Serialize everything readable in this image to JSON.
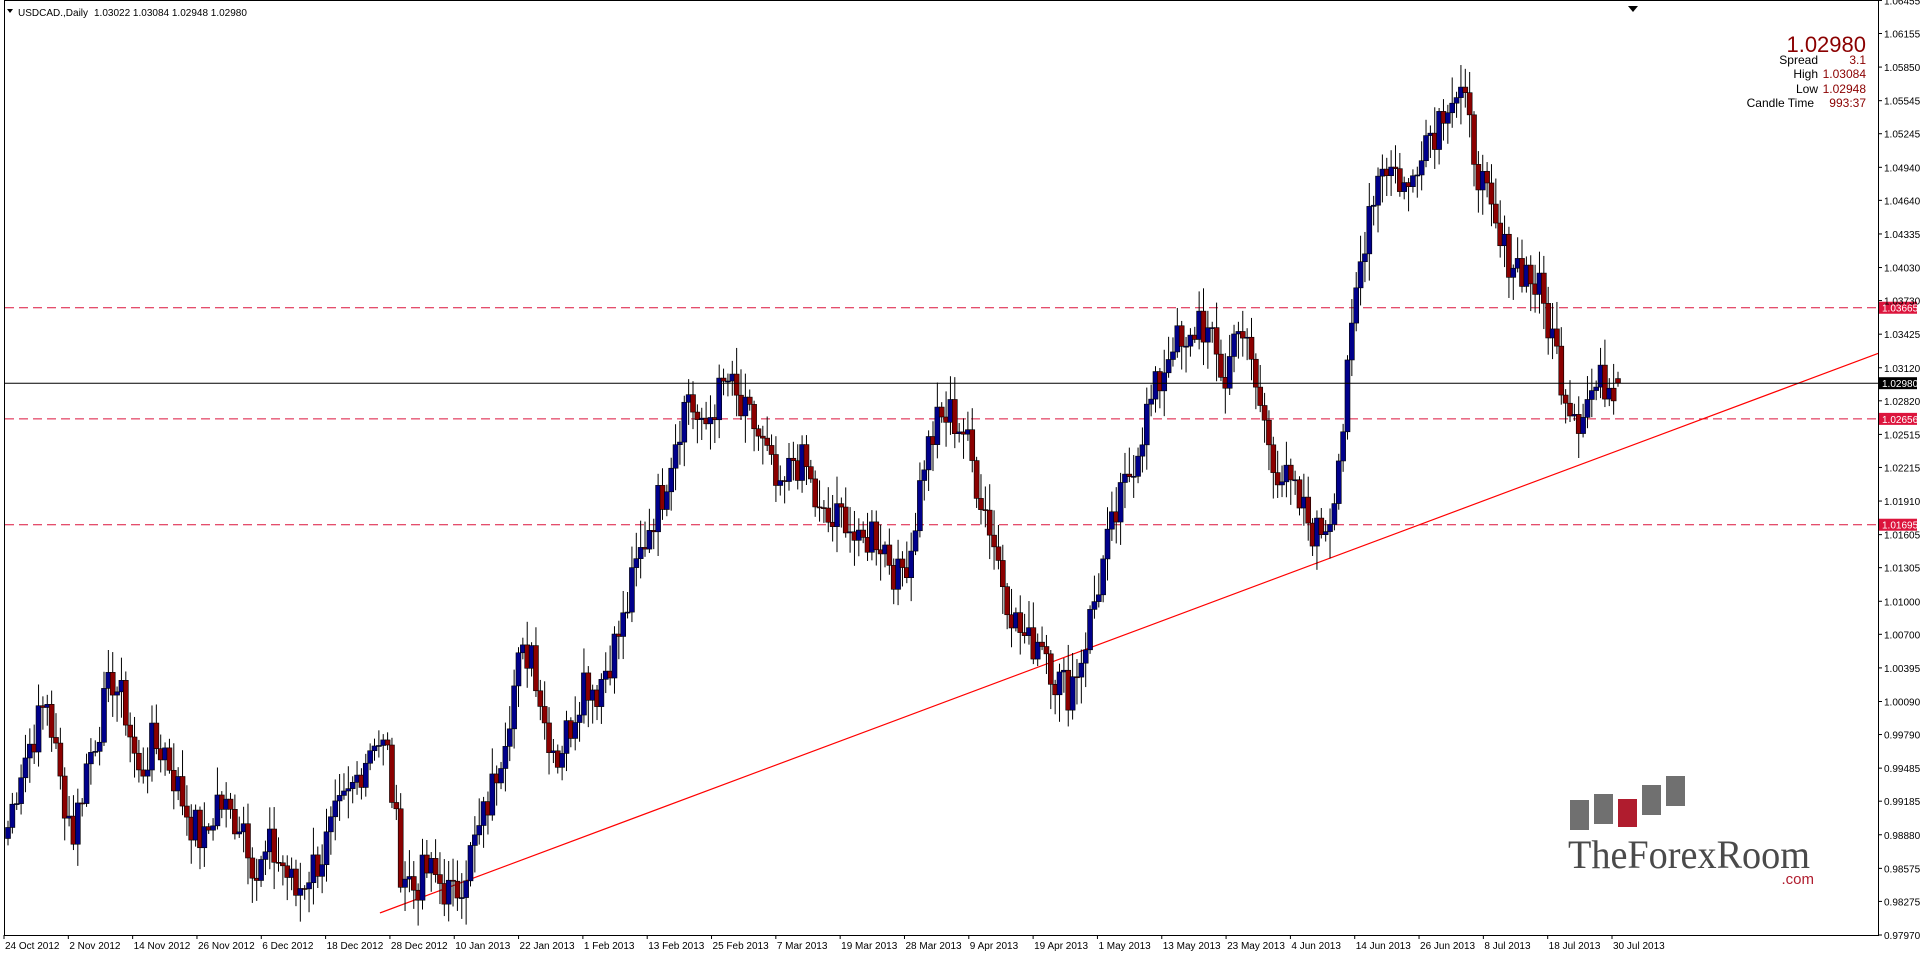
{
  "header": {
    "symbol": "USDCAD.,Daily",
    "ohlc": "1.03022 1.03084 1.02948 1.02980"
  },
  "info_panel": {
    "bid": "1.02980",
    "spread_label": "Spread",
    "spread_value": "3.1",
    "high_label": "High",
    "high_value": "1.03084",
    "low_label": "Low",
    "low_value": "1.02948",
    "candle_time_label": "Candle Time",
    "candle_time_value": "993:37"
  },
  "logo": {
    "name": "TheForexRoom",
    "domain": ".com"
  },
  "colors": {
    "bull": "#00008b",
    "bear": "#8b0000",
    "level_line": "#dc143c",
    "trend_line": "#ff0000",
    "price_line": "#000000"
  },
  "chart_data": {
    "type": "candlestick",
    "ylim": [
      0.9797,
      1.0645
    ],
    "y_ticks": [
      "1.06455",
      "1.06155",
      "1.05850",
      "1.05545",
      "1.05245",
      "1.04940",
      "1.04640",
      "1.04335",
      "1.04030",
      "1.03730",
      "1.03425",
      "1.03120",
      "1.02820",
      "1.02515",
      "1.02215",
      "1.01910",
      "1.01605",
      "1.01305",
      "1.01000",
      "1.00700",
      "1.00395",
      "1.00090",
      "0.99790",
      "0.99485",
      "0.99185",
      "0.98880",
      "0.98575",
      "0.98275",
      "0.97970"
    ],
    "x_ticks": [
      "24 Oct 2012",
      "2 Nov 2012",
      "14 Nov 2012",
      "26 Nov 2012",
      "6 Dec 2012",
      "18 Dec 2012",
      "28 Dec 2012",
      "10 Jan 2013",
      "22 Jan 2013",
      "1 Feb 2013",
      "13 Feb 2013",
      "25 Feb 2013",
      "7 Mar 2013",
      "19 Mar 2013",
      "28 Mar 2013",
      "9 Apr 2013",
      "19 Apr 2013",
      "1 May 2013",
      "13 May 2013",
      "23 May 2013",
      "4 Jun 2013",
      "14 Jun 2013",
      "26 Jun 2013",
      "8 Jul 2013",
      "18 Jul 2013",
      "30 Jul 2013"
    ],
    "current_price": "1.02980",
    "levels": [
      {
        "price": 1.03665,
        "label": "1.03665"
      },
      {
        "price": 1.02656,
        "label": "1.02656"
      },
      {
        "price": 1.01695,
        "label": "1.01695"
      }
    ],
    "trendline": {
      "start": [
        0,
        0.9817
      ],
      "end": [
        1,
        1.0325
      ]
    },
    "anchors": [
      0.9895,
      0.995,
      0.998,
      1.001,
      0.9935,
      0.989,
      0.995,
      0.999,
      1.003,
      1.0,
      0.994,
      0.997,
      0.9965,
      0.993,
      0.99,
      0.988,
      0.992,
      0.9905,
      0.99,
      0.985,
      0.9875,
      0.986,
      0.9835,
      0.9855,
      0.987,
      0.99,
      0.992,
      0.995,
      0.998,
      0.996,
      0.986,
      0.984,
      0.9855,
      0.9845,
      0.983,
      0.986,
      0.989,
      0.993,
      0.9985,
      1.004,
      1.006,
      0.999,
      0.996,
      0.999,
      1.003,
      1.002,
      1.005,
      1.008,
      1.013,
      1.017,
      1.02,
      1.025,
      1.029,
      1.025,
      1.028,
      1.03,
      1.027,
      1.026,
      1.023,
      1.019,
      1.023,
      1.022,
      1.0175,
      1.017,
      1.018,
      1.0145,
      1.0165,
      1.015,
      1.012,
      1.015,
      1.023,
      1.026,
      1.027,
      1.0255,
      1.021,
      1.017,
      1.012,
      1.008,
      1.006,
      1.007,
      1.003,
      1.002,
      1.005,
      1.01,
      1.015,
      1.019,
      1.023,
      1.027,
      1.03,
      1.034,
      1.032,
      1.036,
      1.033,
      1.03,
      1.036,
      1.031,
      1.026,
      1.022,
      1.02,
      1.018,
      1.016,
      1.018,
      1.026,
      1.038,
      1.046,
      1.05,
      1.049,
      1.047,
      1.052,
      1.053,
      1.056,
      1.056,
      1.051,
      1.046,
      1.042,
      1.041,
      1.04,
      1.038,
      1.034,
      1.029,
      1.027,
      1.029,
      1.03,
      1.0298
    ]
  }
}
